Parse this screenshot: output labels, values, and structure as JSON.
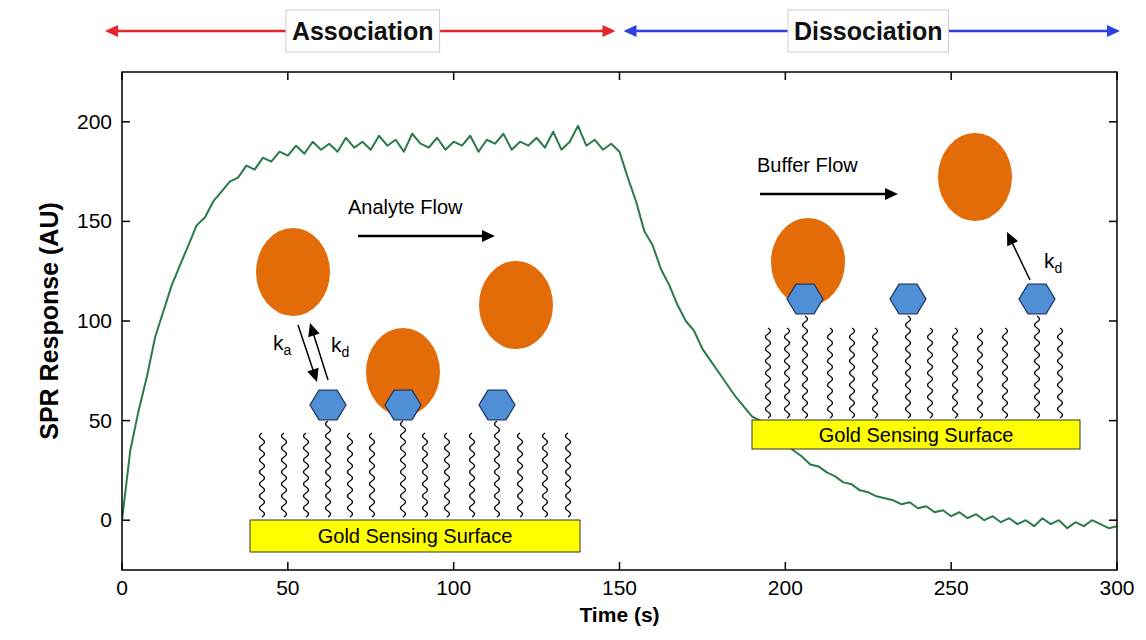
{
  "chart_data": {
    "type": "line",
    "x_label": "Time (s)",
    "y_label": "SPR Response (AU)",
    "x": [
      0,
      2.5,
      5,
      7.5,
      10,
      12.5,
      15,
      17.5,
      20,
      22.5,
      25,
      27.5,
      30,
      32.5,
      35,
      37.5,
      40,
      42.5,
      45,
      47.5,
      50,
      52.5,
      55,
      57.5,
      60,
      62.5,
      65,
      67.5,
      70,
      72.5,
      75,
      77.5,
      80,
      82.5,
      85,
      87.5,
      90,
      92.5,
      95,
      97.5,
      100,
      102.5,
      105,
      107.5,
      110,
      112.5,
      115,
      117.5,
      120,
      122.5,
      125,
      127.5,
      130,
      132.5,
      135,
      137.5,
      140,
      142.5,
      145,
      147.5,
      150,
      152.5,
      155,
      157.5,
      160,
      162.5,
      165,
      167.5,
      170,
      172.5,
      175,
      177.5,
      180,
      182.5,
      185,
      187.5,
      190,
      192.5,
      195,
      197.5,
      200,
      202.5,
      205,
      207.5,
      210,
      212.5,
      215,
      217.5,
      220,
      222.5,
      225,
      227.5,
      230,
      232.5,
      235,
      237.5,
      240,
      242.5,
      245,
      247.5,
      250,
      252.5,
      255,
      257.5,
      260,
      262.5,
      265,
      267.5,
      270,
      272.5,
      275,
      277.5,
      280,
      282.5,
      285,
      287.5,
      290,
      292.5,
      295,
      297.5,
      300
    ],
    "values": [
      0,
      35,
      55,
      72,
      92,
      105,
      118,
      128,
      138,
      148,
      152,
      160,
      165,
      170,
      172,
      178,
      176,
      182,
      180,
      185,
      183,
      188,
      184,
      190,
      186,
      189,
      185,
      192,
      187,
      190,
      186,
      193,
      188,
      191,
      185,
      194,
      189,
      187,
      192,
      186,
      190,
      188,
      193,
      185,
      191,
      189,
      194,
      186,
      190,
      188,
      192,
      187,
      195,
      186,
      190,
      198,
      188,
      191,
      186,
      189,
      185,
      172,
      160,
      145,
      138,
      126,
      118,
      108,
      100,
      95,
      86,
      80,
      74,
      68,
      62,
      57,
      52,
      50,
      44,
      42,
      38,
      35,
      32,
      28,
      27,
      24,
      22,
      19,
      18,
      15,
      14,
      12,
      11,
      10,
      8,
      9,
      6,
      7,
      4,
      5,
      2,
      4,
      1,
      3,
      0,
      2,
      -1,
      1,
      -2,
      0,
      -3,
      1,
      -2,
      0,
      -4,
      -1,
      -3,
      0,
      -2,
      -4,
      -3
    ],
    "color": "#2b7a4b",
    "xlim": [
      0,
      300
    ],
    "xticks": [
      0,
      50,
      100,
      150,
      200,
      250,
      300
    ],
    "ylim": [
      -25,
      225
    ],
    "yticks": [
      0,
      50,
      100,
      150,
      200
    ],
    "grid": false,
    "phases": [
      {
        "label": "Association",
        "start": 0,
        "end": 150,
        "color": "#e8242a"
      },
      {
        "label": "Dissociation",
        "start": 150,
        "end": 300,
        "color": "#2e3fe0"
      }
    ],
    "insets": [
      {
        "flow_label": "Analyte Flow",
        "rate_labels": [
          {
            "main": "k",
            "sub": "a"
          },
          {
            "main": "k",
            "sub": "d"
          }
        ],
        "surface_label": "Gold Sensing Surface"
      },
      {
        "flow_label": "Buffer Flow",
        "rate_labels": [
          {
            "main": "k",
            "sub": "d"
          }
        ],
        "surface_label": "Gold Sensing Surface"
      }
    ]
  }
}
